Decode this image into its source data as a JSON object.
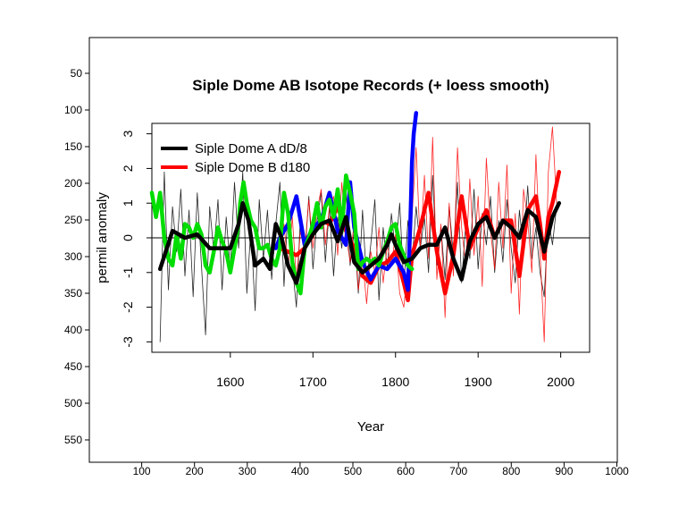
{
  "chart_data": [
    {
      "type": "table",
      "role": "outer-image-frame",
      "x_ticks": [
        "100",
        "200",
        "300",
        "400",
        "500",
        "600",
        "700",
        "800",
        "900",
        "1000"
      ],
      "y_ticks": [
        "50",
        "100",
        "150",
        "200",
        "250",
        "300",
        "350",
        "400",
        "450",
        "500",
        "550"
      ],
      "xlim": [
        0,
        1000
      ],
      "ylim": [
        0,
        576
      ]
    },
    {
      "type": "line",
      "title": "Siple Dome AB Isotope Records (+ loess smooth)",
      "xlabel": "Year",
      "ylabel": "permil anomaly",
      "xlim": [
        1505,
        2035
      ],
      "ylim": [
        -3.3,
        3.3
      ],
      "x_ticks": [
        "1600",
        "1700",
        "1800",
        "1900",
        "2000"
      ],
      "y_ticks": [
        "-3",
        "-2",
        "-1",
        "0",
        "1",
        "2",
        "3"
      ],
      "legend": {
        "placement": "top-left",
        "entries": [
          {
            "label": "Siple Dome A dD/8",
            "color": "#000000"
          },
          {
            "label": "Siple Dome B d180",
            "color": "#ff0000"
          }
        ]
      },
      "reference_line_y": 0,
      "series": [
        {
          "name": "Siple Dome A dD/8",
          "color": "#000000",
          "style": "smooth",
          "x": [
            1515,
            1530,
            1545,
            1560,
            1575,
            1590,
            1600,
            1610,
            1615,
            1622,
            1630,
            1640,
            1648,
            1655,
            1662,
            1670,
            1680,
            1690,
            1700,
            1710,
            1720,
            1730,
            1740,
            1750,
            1760,
            1770,
            1780,
            1790,
            1795,
            1800,
            1810,
            1820,
            1830,
            1840,
            1850,
            1860,
            1870,
            1880,
            1890,
            1900,
            1910,
            1920,
            1930,
            1940,
            1950,
            1960,
            1970,
            1980,
            1990,
            1998
          ],
          "y": [
            -0.9,
            0.2,
            0.0,
            0.1,
            -0.3,
            -0.3,
            -0.3,
            0.4,
            1.0,
            0.5,
            -0.8,
            -0.6,
            -0.9,
            0.4,
            0.0,
            -0.8,
            -1.3,
            -0.3,
            0.1,
            0.4,
            0.5,
            -0.1,
            0.6,
            -0.7,
            -1.0,
            -0.8,
            -0.6,
            -0.2,
            0.1,
            -0.2,
            -0.7,
            -0.6,
            -0.3,
            -0.2,
            -0.2,
            0.3,
            -0.6,
            -1.2,
            -0.1,
            0.4,
            0.6,
            0.0,
            0.5,
            0.3,
            0.0,
            0.8,
            0.6,
            -0.4,
            0.6,
            1.0
          ]
        },
        {
          "name": "Siple Dome B d180",
          "color": "#ff0000",
          "style": "smooth",
          "x": [
            1660,
            1670,
            1680,
            1690,
            1700,
            1710,
            1720,
            1730,
            1740,
            1750,
            1760,
            1770,
            1780,
            1790,
            1800,
            1810,
            1815,
            1820,
            1830,
            1840,
            1850,
            1860,
            1870,
            1880,
            1890,
            1900,
            1910,
            1920,
            1930,
            1940,
            1950,
            1960,
            1970,
            1975,
            1980,
            1985,
            1990,
            1998
          ],
          "y": [
            -0.3,
            -0.4,
            -0.5,
            -0.3,
            0.2,
            0.5,
            0.4,
            0.9,
            0.2,
            -0.3,
            -1.1,
            -1.3,
            -0.8,
            -0.7,
            -0.4,
            -1.3,
            -1.8,
            -0.5,
            0.3,
            1.3,
            -0.4,
            -1.6,
            -0.5,
            1.2,
            -0.3,
            0.3,
            0.8,
            0.0,
            0.5,
            0.5,
            -1.1,
            0.8,
            1.2,
            0.4,
            -0.6,
            0.6,
            1.0,
            1.9
          ]
        },
        {
          "name": "",
          "color": "#0000ff",
          "style": "smooth",
          "x": [
            1655,
            1660,
            1670,
            1680,
            1690,
            1700,
            1710,
            1720,
            1730,
            1740,
            1745,
            1750,
            1760,
            1770,
            1780,
            1790,
            1800,
            1810,
            1815,
            1818,
            1820,
            1822,
            1825
          ],
          "y": [
            -0.3,
            0.0,
            0.4,
            1.2,
            -0.2,
            0.3,
            0.5,
            1.3,
            0.2,
            -0.2,
            1.6,
            0.3,
            -0.7,
            -1.2,
            -0.8,
            -0.9,
            -0.6,
            -1.0,
            -1.5,
            0.5,
            2.2,
            3.0,
            3.6
          ]
        },
        {
          "name": "",
          "color": "#00dd00",
          "style": "smooth",
          "x": [
            1505,
            1510,
            1515,
            1520,
            1525,
            1530,
            1535,
            1540,
            1545,
            1550,
            1555,
            1560,
            1565,
            1570,
            1575,
            1580,
            1585,
            1590,
            1595,
            1600,
            1605,
            1610,
            1612,
            1616,
            1620,
            1625,
            1630,
            1635,
            1640,
            1645,
            1650,
            1655,
            1660,
            1665,
            1670,
            1675,
            1680,
            1685,
            1690,
            1695,
            1700,
            1705,
            1710,
            1715,
            1720,
            1725,
            1730,
            1735,
            1740,
            1745,
            1750,
            1755,
            1760,
            1765,
            1770,
            1775,
            1780,
            1785,
            1790,
            1795,
            1800,
            1805,
            1810,
            1815,
            1820
          ],
          "y": [
            1.3,
            0.6,
            1.3,
            0.0,
            -0.6,
            -0.8,
            0.1,
            -0.6,
            0.4,
            0.3,
            0.0,
            0.4,
            0.1,
            -0.8,
            -1.0,
            -0.4,
            0.3,
            -0.1,
            -0.4,
            -1.0,
            -0.3,
            0.4,
            1.0,
            1.6,
            1.0,
            0.5,
            0.3,
            -0.3,
            -0.3,
            -0.2,
            -0.6,
            -0.8,
            -0.3,
            1.3,
            0.7,
            -0.7,
            -1.3,
            -1.6,
            -0.3,
            0.0,
            0.4,
            1.0,
            0.3,
            0.9,
            1.1,
            0.6,
            1.4,
            0.2,
            1.8,
            1.3,
            0.7,
            -0.9,
            -0.7,
            -0.6,
            -0.7,
            -0.6,
            -0.8,
            -0.4,
            -0.1,
            0.3,
            0.4,
            -0.2,
            -0.5,
            -0.8,
            -0.9
          ]
        },
        {
          "name": "",
          "color": "#000000",
          "style": "thin",
          "x": [
            1515,
            1520,
            1525,
            1530,
            1535,
            1540,
            1545,
            1550,
            1555,
            1560,
            1565,
            1570,
            1575,
            1580,
            1585,
            1590,
            1595,
            1600,
            1605,
            1610,
            1615,
            1620,
            1625,
            1630,
            1635,
            1640,
            1645,
            1650,
            1655,
            1660,
            1665,
            1670,
            1675,
            1680,
            1685,
            1690,
            1695,
            1700,
            1705,
            1710,
            1715,
            1720,
            1725,
            1730,
            1735,
            1740,
            1745,
            1750,
            1755,
            1760,
            1765,
            1770,
            1775,
            1780,
            1785,
            1790,
            1795,
            1800,
            1805,
            1810,
            1815,
            1820,
            1825,
            1830,
            1835,
            1840,
            1845,
            1850,
            1855,
            1860,
            1865,
            1870,
            1875,
            1880,
            1885,
            1890,
            1895,
            1900,
            1905,
            1910,
            1915,
            1920,
            1925,
            1930,
            1935,
            1940,
            1945,
            1950,
            1955,
            1960,
            1965,
            1970,
            1975,
            1980,
            1985,
            1990,
            1995
          ],
          "y": [
            -3.0,
            1.9,
            -1.5,
            0.9,
            -0.4,
            1.4,
            -1.1,
            0.8,
            -1.7,
            1.3,
            -0.8,
            -2.8,
            0.9,
            -0.4,
            1.1,
            -1.5,
            0.6,
            -0.9,
            1.6,
            -0.3,
            1.9,
            -1.6,
            0.3,
            -2.1,
            1.1,
            -0.6,
            0.8,
            -1.2,
            0.4,
            1.6,
            -1.4,
            0.9,
            -0.8,
            -2.0,
            0.7,
            -0.6,
            1.2,
            -0.9,
            0.5,
            1.3,
            -0.7,
            0.9,
            -1.1,
            0.6,
            -0.3,
            1.4,
            -0.8,
            0.2,
            -1.6,
            0.8,
            -1.3,
            -0.2,
            1.1,
            -1.8,
            0.3,
            -0.9,
            0.7,
            -0.4,
            1.0,
            -1.4,
            0.5,
            -0.7,
            0.9,
            -0.3,
            0.6,
            -1.0,
            1.8,
            -0.8,
            0.3,
            -1.2,
            0.9,
            -0.5,
            1.6,
            -1.3,
            0.4,
            -0.6,
            1.4,
            -0.9,
            0.7,
            -0.2,
            1.2,
            -1.0,
            0.5,
            -0.7,
            1.1,
            -0.3,
            -1.3,
            0.8,
            -0.4,
            1.5,
            -0.6,
            0.3,
            -1.0,
            -1.7,
            0.6,
            -0.2,
            0.9
          ]
        },
        {
          "name": "",
          "color": "#ff0000",
          "style": "thin",
          "x": [
            1660,
            1665,
            1670,
            1675,
            1680,
            1685,
            1690,
            1695,
            1700,
            1705,
            1710,
            1715,
            1720,
            1725,
            1730,
            1735,
            1740,
            1745,
            1750,
            1755,
            1760,
            1765,
            1770,
            1775,
            1780,
            1785,
            1790,
            1795,
            1800,
            1805,
            1810,
            1815,
            1820,
            1825,
            1830,
            1835,
            1840,
            1845,
            1850,
            1855,
            1860,
            1865,
            1870,
            1875,
            1880,
            1885,
            1890,
            1895,
            1900,
            1905,
            1910,
            1915,
            1920,
            1925,
            1930,
            1935,
            1940,
            1945,
            1950,
            1955,
            1960,
            1965,
            1970,
            1975,
            1980,
            1985,
            1990,
            1995
          ],
          "y": [
            -0.5,
            0.4,
            -0.9,
            0.6,
            -1.2,
            0.2,
            -0.4,
            1.1,
            -0.3,
            0.8,
            1.4,
            -0.2,
            0.9,
            1.2,
            -0.5,
            1.6,
            0.1,
            -0.7,
            0.5,
            -1.5,
            -0.6,
            -1.9,
            -0.4,
            -1.0,
            0.3,
            -1.3,
            -0.2,
            -0.8,
            0.1,
            -1.6,
            -2.0,
            -0.8,
            0.6,
            2.6,
            -0.3,
            1.8,
            -0.6,
            2.9,
            -1.2,
            0.4,
            -2.3,
            1.0,
            -1.1,
            2.6,
            0.3,
            -0.8,
            1.7,
            -0.5,
            1.2,
            -1.4,
            2.3,
            0.2,
            -0.9,
            1.6,
            -0.3,
            2.1,
            -1.6,
            0.7,
            -2.2,
            1.4,
            0.5,
            -1.0,
            2.4,
            -0.4,
            -3.0,
            1.9,
            3.2,
            1.0
          ]
        }
      ]
    }
  ]
}
